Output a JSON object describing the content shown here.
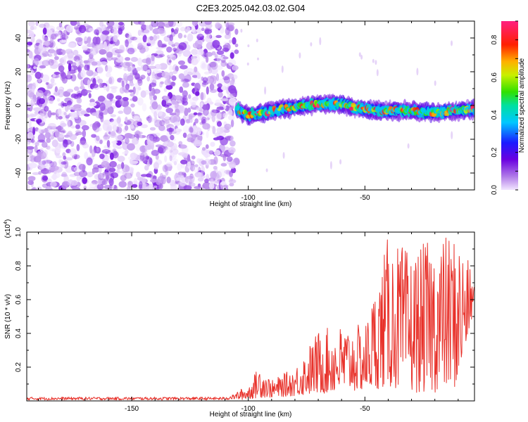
{
  "title": "C2E3.2025.042.03.02.G04",
  "chart_data": [
    {
      "type": "heatmap",
      "xlabel": "Height of straight line (km)",
      "ylabel": "Frequency (Hz)",
      "xlim": [
        -195,
        -3
      ],
      "ylim": [
        -50,
        50
      ],
      "xticks": [
        -150,
        -100,
        -50
      ],
      "yticks": [
        -40,
        -20,
        0,
        20,
        40
      ],
      "grid": false,
      "colorbar": {
        "label": "Normalized spectral amplitude",
        "range": [
          0,
          0.9
        ],
        "ticks": [
          0.0,
          0.2,
          0.4,
          0.6,
          0.8
        ],
        "colormap": "rainbow (magenta-blue-cyan-green-yellow-red-pink)"
      },
      "regions": [
        {
          "name": "noise",
          "x_range": [
            -195,
            -105
          ],
          "freq_range": [
            -50,
            50
          ],
          "amplitude_range": [
            0.0,
            0.15
          ]
        },
        {
          "name": "signal",
          "x_range": [
            -105,
            -3
          ],
          "center_freq": [
            [
              -105,
              -2
            ],
            [
              -100,
              -6
            ],
            [
              -90,
              -3
            ],
            [
              -80,
              -1
            ],
            [
              -70,
              1
            ],
            [
              -60,
              1
            ],
            [
              -55,
              -1
            ],
            [
              -45,
              -3
            ],
            [
              -35,
              -3
            ],
            [
              -20,
              -4
            ],
            [
              -10,
              -3
            ],
            [
              -3,
              -2
            ]
          ],
          "amplitude_peak": 0.9
        }
      ]
    },
    {
      "type": "line",
      "xlabel": "Height of straight line (km)",
      "ylabel": "SNR (10 * v/v)",
      "yscale_label": "(x10",
      "yscale_exponent": "4",
      "xlim": [
        -195,
        -3
      ],
      "ylim": [
        0,
        1.0
      ],
      "xticks": [
        -150,
        -100,
        -50
      ],
      "yticks": [
        0.2,
        0.4,
        0.6,
        0.8,
        1.0
      ],
      "grid": false,
      "series_color": "#e8312a",
      "envelope": [
        {
          "x": -195,
          "lo": 0.0,
          "hi": 0.03
        },
        {
          "x": -110,
          "lo": 0.0,
          "hi": 0.03
        },
        {
          "x": -100,
          "lo": 0.01,
          "hi": 0.09
        },
        {
          "x": -95,
          "lo": 0.02,
          "hi": 0.22
        },
        {
          "x": -90,
          "lo": 0.02,
          "hi": 0.12
        },
        {
          "x": -80,
          "lo": 0.03,
          "hi": 0.2
        },
        {
          "x": -70,
          "lo": 0.04,
          "hi": 0.42
        },
        {
          "x": -60,
          "lo": 0.05,
          "hi": 0.45
        },
        {
          "x": -50,
          "lo": 0.06,
          "hi": 0.45
        },
        {
          "x": -40,
          "lo": 0.08,
          "hi": 0.98
        },
        {
          "x": -30,
          "lo": 0.05,
          "hi": 0.88
        },
        {
          "x": -20,
          "lo": 0.05,
          "hi": 0.98
        },
        {
          "x": -10,
          "lo": 0.08,
          "hi": 1.0
        },
        {
          "x": -3,
          "lo": 0.55,
          "hi": 0.72
        }
      ]
    }
  ]
}
